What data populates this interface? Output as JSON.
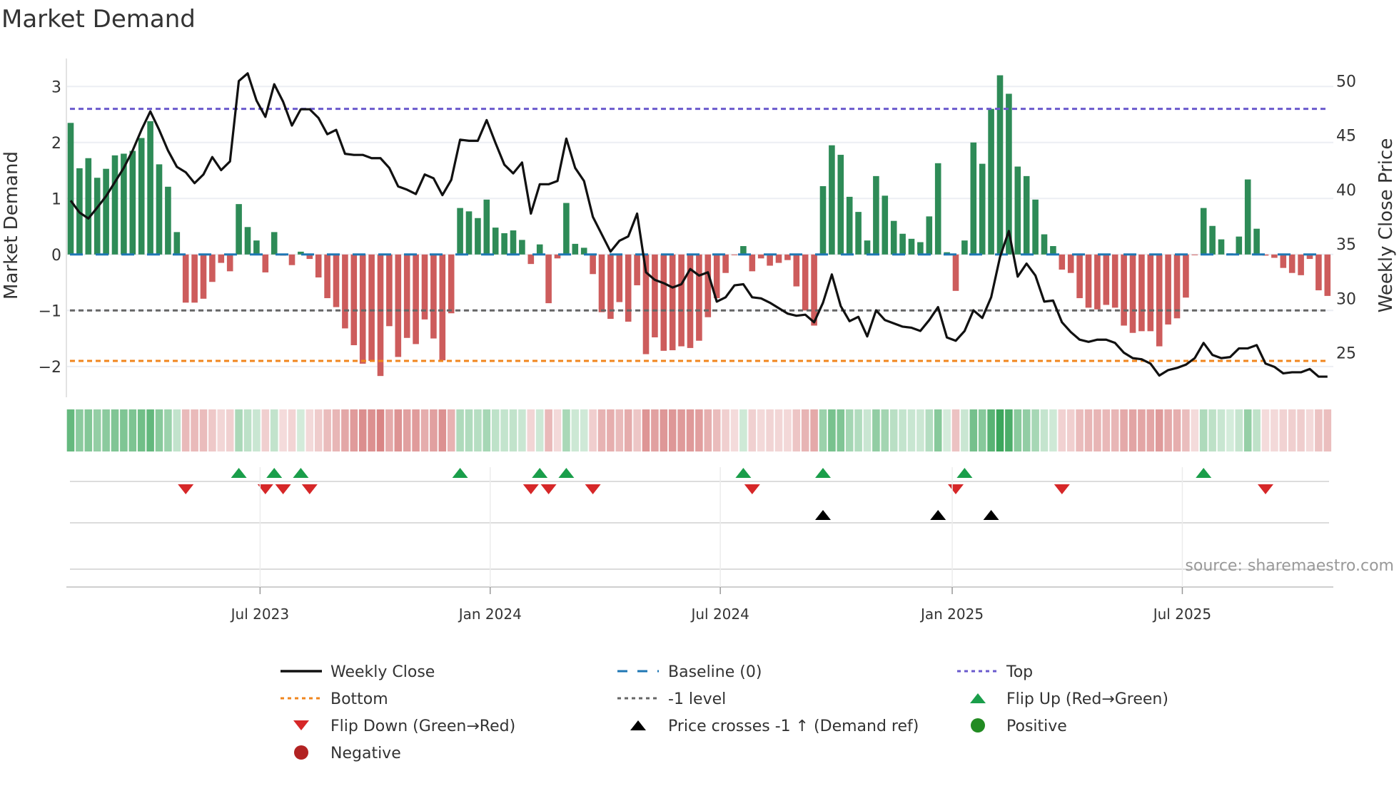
{
  "title": "Market Demand",
  "source": "source: sharemaestro.com",
  "colors": {
    "bar_positive": "#2e8b57",
    "bar_negative": "#cd5c5c",
    "strip_positive": "#2ea050",
    "strip_negative": "#c85050",
    "price_line": "#111111",
    "baseline": "#1f77b4",
    "top": "#6a5acd",
    "bottom": "#f0861e",
    "level": "#666666",
    "flip_up": "#1a9e4a",
    "flip_down": "#d62728",
    "price_cross": "#000000",
    "positive_dot": "#228b22",
    "negative_dot": "#b22222",
    "grid": "#eceef3",
    "source_text": "#999999"
  },
  "legend": [
    {
      "label": "Weekly Close",
      "symbol": "solid-line"
    },
    {
      "label": "Baseline (0)",
      "symbol": "dashed-line"
    },
    {
      "label": "Top",
      "symbol": "dotted-line-purple"
    },
    {
      "label": "Bottom",
      "symbol": "dotted-line-orange"
    },
    {
      "label": "-1 level",
      "symbol": "dotted-line-gray"
    },
    {
      "label": "Flip Up (Red→Green)",
      "symbol": "triangle-up-green"
    },
    {
      "label": "Flip Down (Green→Red)",
      "symbol": "triangle-down-red"
    },
    {
      "label": "Price crosses -1 ↑ (Demand ref)",
      "symbol": "triangle-up-black"
    },
    {
      "label": "Positive",
      "symbol": "dot-green"
    },
    {
      "label": "Negative",
      "symbol": "dot-red"
    }
  ],
  "chart_data": {
    "type": "bar",
    "title": "Market Demand",
    "ylabel": "Market Demand",
    "y2label": "Weekly Close Price",
    "xlabel": "",
    "ylim": [
      -2.55,
      3.5
    ],
    "y2lim": [
      20.9,
      52.07
    ],
    "y_ticks": [
      3,
      2,
      1,
      0,
      -1,
      -2
    ],
    "y_tick_labels": [
      "3",
      "2",
      "1",
      "0",
      "−1",
      "−2"
    ],
    "y2_ticks": [
      50,
      45,
      40,
      35,
      30,
      25
    ],
    "y2_tick_labels": [
      "50",
      "45",
      "40",
      "35",
      "30",
      "25"
    ],
    "x_ticks": [
      {
        "label": "Jul 2023",
        "week": 21.4
      },
      {
        "label": "Jan 2024",
        "week": 47.4
      },
      {
        "label": "Jul 2024",
        "week": 73.4
      },
      {
        "label": "Jan 2025",
        "week": 99.6
      },
      {
        "label": "Jul 2025",
        "week": 125.6
      }
    ],
    "reference_lines": {
      "top": 2.6,
      "bottom": -1.9,
      "level": -1,
      "baseline": 0
    },
    "grid": true,
    "legend_position": "bottom",
    "series": [
      {
        "name": "Market Demand",
        "axis": "left",
        "values": [
          2.35,
          1.54,
          1.72,
          1.37,
          1.53,
          1.77,
          1.8,
          1.85,
          2.08,
          2.38,
          1.61,
          1.21,
          0.4,
          -0.86,
          -0.86,
          -0.79,
          -0.49,
          -0.15,
          -0.3,
          0.9,
          0.49,
          0.25,
          -0.32,
          0.4,
          -0.02,
          -0.19,
          0.05,
          -0.08,
          -0.41,
          -0.78,
          -0.94,
          -1.32,
          -1.62,
          -1.95,
          -1.9,
          -2.17,
          -1.28,
          -1.83,
          -1.49,
          -1.6,
          -1.16,
          -1.5,
          -1.89,
          -1.05,
          0.83,
          0.77,
          0.65,
          0.98,
          0.48,
          0.38,
          0.43,
          0.26,
          -0.17,
          0.18,
          -0.87,
          -0.07,
          0.92,
          0.19,
          0.12,
          -0.35,
          -1.03,
          -1.15,
          -0.85,
          -1.2,
          -0.55,
          -1.78,
          -1.48,
          -1.72,
          -1.71,
          -1.64,
          -1.67,
          -1.54,
          -1.12,
          -0.78,
          -0.33,
          -0.01,
          0.15,
          -0.3,
          -0.07,
          -0.2,
          -0.15,
          -0.1,
          -0.57,
          -1.0,
          -1.27,
          1.22,
          1.95,
          1.78,
          1.03,
          0.76,
          0.25,
          1.4,
          1.05,
          0.6,
          0.37,
          0.28,
          0.22,
          0.68,
          1.63,
          0.04,
          -0.65,
          0.25,
          2.0,
          1.62,
          2.6,
          3.2,
          2.87,
          1.57,
          1.4,
          0.98,
          0.36,
          0.15,
          -0.27,
          -0.33,
          -0.78,
          -0.95,
          -0.98,
          -0.9,
          -0.95,
          -1.27,
          -1.4,
          -1.37,
          -1.37,
          -1.64,
          -1.25,
          -1.14,
          -0.77,
          -0.01,
          0.83,
          0.51,
          0.27,
          0.02,
          0.32,
          1.34,
          0.46,
          -0.02,
          -0.06,
          -0.24,
          -0.33,
          -0.37,
          -0.08,
          -0.64,
          -0.74
        ]
      },
      {
        "name": "Weekly Close",
        "axis": "right",
        "values": [
          39.0,
          37.9,
          37.35,
          38.35,
          39.4,
          40.7,
          42.0,
          43.6,
          45.5,
          47.2,
          45.5,
          43.6,
          42.1,
          41.6,
          40.6,
          41.4,
          43.0,
          41.8,
          42.6,
          50.0,
          50.7,
          48.2,
          46.7,
          49.7,
          48.1,
          45.9,
          47.4,
          47.4,
          46.6,
          45.1,
          45.5,
          43.3,
          43.2,
          43.2,
          42.9,
          42.9,
          42.0,
          40.3,
          40.0,
          39.6,
          41.4,
          41.05,
          39.5,
          40.9,
          44.6,
          44.5,
          44.5,
          46.4,
          44.3,
          42.3,
          41.5,
          42.5,
          37.8,
          40.5,
          40.5,
          40.8,
          44.7,
          42.0,
          40.8,
          37.5,
          35.9,
          34.3,
          35.3,
          35.7,
          37.8,
          32.4,
          31.7,
          31.4,
          31.0,
          31.3,
          32.7,
          32.1,
          32.4,
          29.7,
          30.1,
          31.2,
          31.3,
          30.1,
          30.0,
          29.6,
          29.1,
          28.6,
          28.4,
          28.5,
          27.8,
          29.6,
          32.2,
          29.3,
          27.9,
          28.3,
          26.5,
          28.9,
          28.0,
          27.7,
          27.4,
          27.3,
          27.0,
          28.0,
          29.2,
          26.4,
          26.1,
          27.0,
          28.9,
          28.2,
          30.1,
          33.8,
          36.2,
          32.0,
          33.2,
          32.1,
          29.7,
          29.8,
          27.8,
          26.9,
          26.2,
          26.0,
          26.2,
          26.2,
          25.9,
          25.0,
          24.5,
          24.4,
          24.0,
          22.9,
          23.4,
          23.6,
          23.9,
          24.5,
          25.9,
          24.8,
          24.5,
          24.6,
          25.4,
          25.4,
          25.7,
          24.0,
          23.7,
          23.1,
          23.2,
          23.2,
          23.5,
          22.8,
          22.8
        ]
      }
    ],
    "price_cross_weeks": [
      85,
      98,
      104
    ]
  }
}
